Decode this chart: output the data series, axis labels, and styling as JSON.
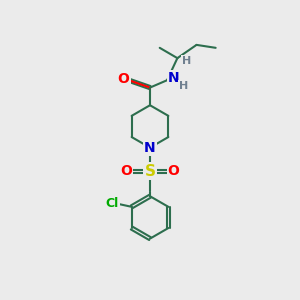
{
  "background_color": "#ebebeb",
  "bond_color": "#2d6e4e",
  "bond_width": 1.5,
  "atom_colors": {
    "O": "#ff0000",
    "N": "#0000cc",
    "S": "#cccc00",
    "Cl": "#00aa00",
    "H": "#708090",
    "C": "#2d6e4e"
  },
  "font_size": 9,
  "fig_size": [
    3.0,
    3.0
  ],
  "dpi": 100
}
